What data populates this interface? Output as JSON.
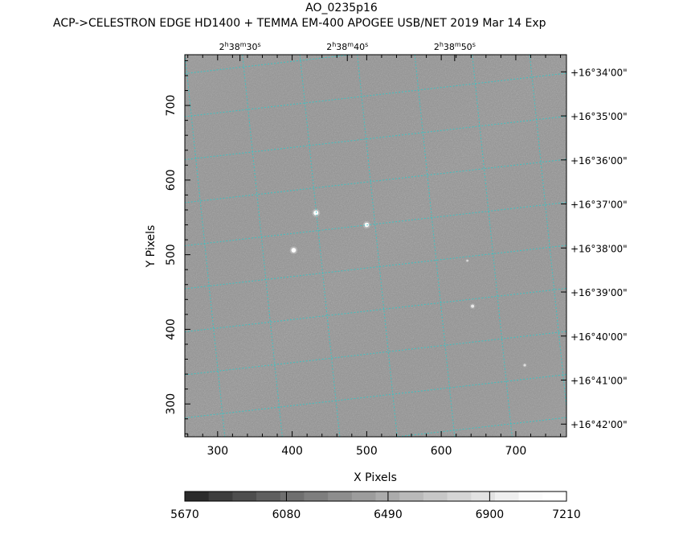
{
  "header": {
    "object_name": "AO_0235p16",
    "subtitle": "ACP->CELESTRON EDGE HD1400 + TEMMA EM-400 APOGEE USB/NET   2019 Mar 14    Exp"
  },
  "chart_data": {
    "type": "heatmap",
    "xlabel": "X Pixels",
    "ylabel": "Y Pixels",
    "xlim": [
      256,
      768
    ],
    "ylim": [
      256,
      768
    ],
    "x_ticks": [
      300,
      400,
      500,
      600,
      700
    ],
    "y_ticks": [
      300,
      400,
      500,
      600,
      700
    ],
    "ra_ticks": [
      {
        "h": "2",
        "m": "38",
        "s": "30",
        "x": 330
      },
      {
        "h": "2",
        "m": "38",
        "s": "40",
        "x": 474
      },
      {
        "h": "2",
        "m": "38",
        "s": "50",
        "x": 618
      }
    ],
    "dec_ticks": [
      {
        "label": "+16°34'00\"",
        "y": 745
      },
      {
        "label": "+16°35'00\"",
        "y": 686
      },
      {
        "label": "+16°36'00\"",
        "y": 627
      },
      {
        "label": "+16°37'00\"",
        "y": 568
      },
      {
        "label": "+16°38'00\"",
        "y": 509
      },
      {
        "label": "+16°39'00\"",
        "y": 450
      },
      {
        "label": "+16°40'00\"",
        "y": 391
      },
      {
        "label": "+16°41'00\"",
        "y": 332
      },
      {
        "label": "+16°42'00\"",
        "y": 273
      }
    ],
    "colorbar": {
      "min": 5670,
      "max": 7210,
      "tick_labels": [
        "5670",
        "6080",
        "6490",
        "6900",
        "7210"
      ],
      "tick_values": [
        5670,
        6080,
        6490,
        6900,
        7210
      ],
      "colors": [
        "#2b2b2b",
        "#3d3d3d",
        "#4e4e4e",
        "#5f5f5f",
        "#6f6f6f",
        "#7e7e7e",
        "#8d8d8d",
        "#9c9c9c",
        "#ababab",
        "#b9b9b9",
        "#c7c7c7",
        "#d5d5d5",
        "#e2e2e2",
        "#efefef",
        "#fbfbfb",
        "#ffffff"
      ]
    },
    "stars": [
      {
        "x": 432,
        "y": 556,
        "brightness": 1.0
      },
      {
        "x": 500,
        "y": 540,
        "brightness": 0.9
      },
      {
        "x": 402,
        "y": 506,
        "brightness": 0.95
      },
      {
        "x": 642,
        "y": 431,
        "brightness": 0.5
      },
      {
        "x": 712,
        "y": 352,
        "brightness": 0.3
      },
      {
        "x": 635,
        "y": 492,
        "brightness": 0.2
      }
    ],
    "grid_color": "#2ec8c8",
    "image_color": "#8e8e8e"
  }
}
